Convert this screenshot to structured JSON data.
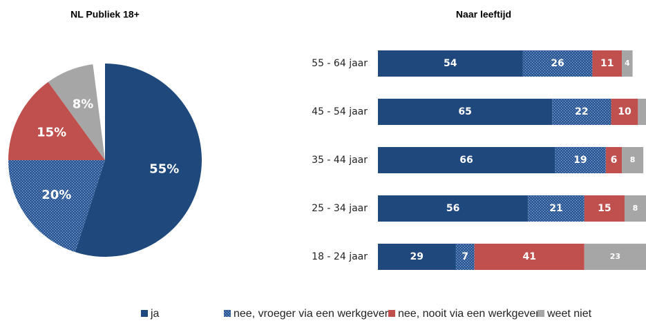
{
  "chart_data": [
    {
      "type": "pie",
      "title": "NL Publiek 18+",
      "values": [
        55,
        20,
        15,
        8
      ],
      "value_labels": [
        "55%",
        "20%",
        "15%",
        "8%"
      ],
      "colors": [
        "#1f497d",
        "hatch",
        "#c0504d",
        "#a6a6a6"
      ]
    },
    {
      "type": "stacked_barh",
      "title": "Naar leeftijd",
      "categories": [
        "55 - 64 jaar",
        "45 - 54 jaar",
        "35 - 44 jaar",
        "25 - 34 jaar",
        "18 - 24 jaar"
      ],
      "xlim": [
        0,
        100
      ],
      "series": [
        {
          "name": "ja",
          "color": "#1f497d",
          "values": [
            54,
            65,
            66,
            56,
            29
          ]
        },
        {
          "name": "nee,  vroeger via een werkgever",
          "color": "hatch",
          "values": [
            26,
            22,
            19,
            21,
            7
          ]
        },
        {
          "name": "nee, nooit via een werkgever",
          "color": "#c0504d",
          "values": [
            11,
            10,
            6,
            15,
            41
          ]
        },
        {
          "name": "weet niet",
          "color": "#a6a6a6",
          "values": [
            4,
            3,
            8,
            8,
            23
          ]
        }
      ],
      "legend": "bottom"
    }
  ]
}
